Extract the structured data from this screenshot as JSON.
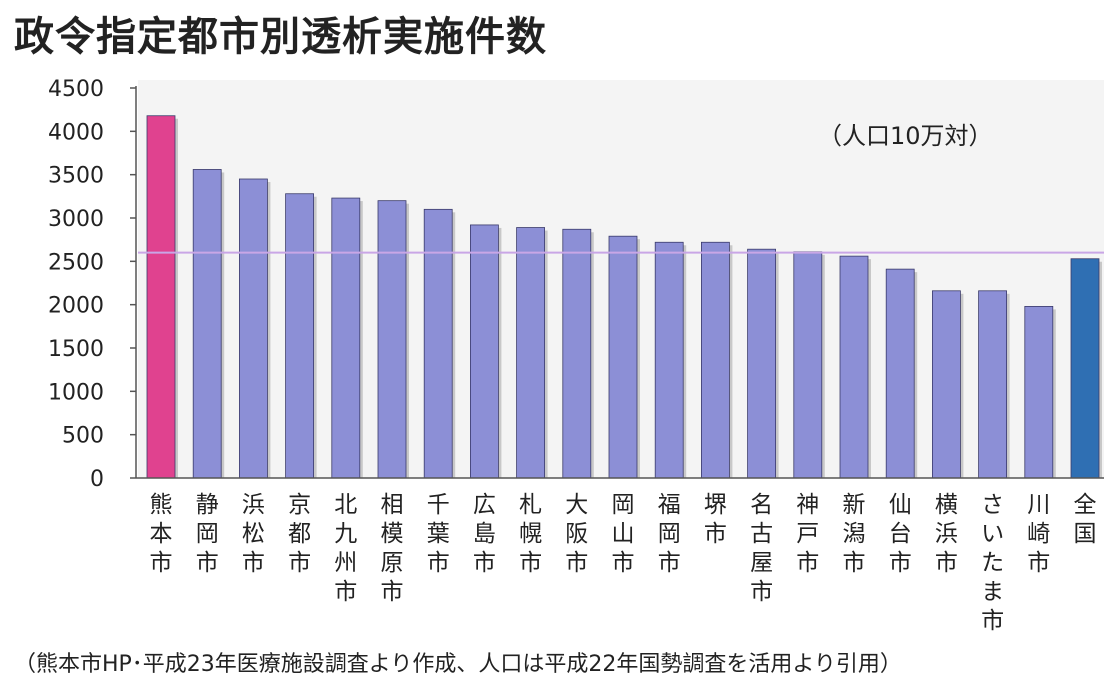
{
  "title": "政令指定都市別透析実施件数",
  "unit_label": "（人口10万対）",
  "footnote": "（熊本市HP･平成23年医療施設調査より作成、人口は平成22年国勢調査を活用より引用）",
  "colors": {
    "bar": "#8c8fd6",
    "highlight": "#e0428f",
    "national": "#2f6fb3",
    "reference_line": "#c9a6e6",
    "plot_bg": "#f4f4f4"
  },
  "chart_data": {
    "type": "bar",
    "title": "政令指定都市別透析実施件数",
    "xlabel": "",
    "ylabel": "",
    "ylim": [
      0,
      4500
    ],
    "yticks": [
      0,
      500,
      1000,
      1500,
      2000,
      2500,
      3000,
      3500,
      4000,
      4500
    ],
    "grid": false,
    "categories": [
      "熊本市",
      "静岡市",
      "浜松市",
      "京都市",
      "北九州市",
      "相模原市",
      "千葉市",
      "広島市",
      "札幌市",
      "大阪市",
      "岡山市",
      "福岡市",
      "堺市",
      "名古屋市",
      "神戸市",
      "新潟市",
      "仙台市",
      "横浜市",
      "さいたま市",
      "川崎市",
      "全国"
    ],
    "values": [
      4180,
      3560,
      3450,
      3280,
      3230,
      3200,
      3100,
      2920,
      2890,
      2870,
      2790,
      2720,
      2720,
      2640,
      2610,
      2560,
      2410,
      2160,
      2160,
      1980,
      2530
    ],
    "highlight_category": "熊本市",
    "national_category": "全国",
    "reference_line_value": 2600
  }
}
